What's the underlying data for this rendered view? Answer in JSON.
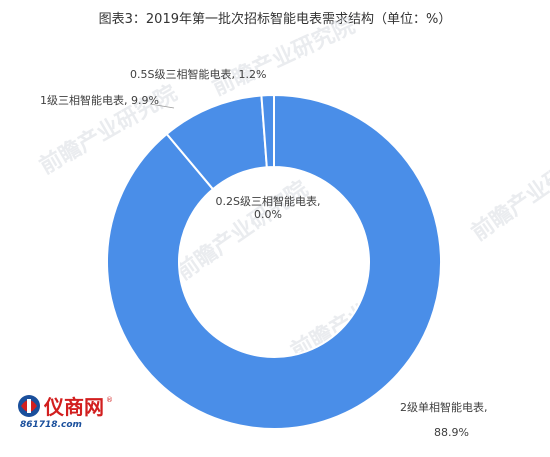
{
  "title": "图表3：2019年第一批次招标智能电表需求结构（单位：%）",
  "chart_data": {
    "type": "pie",
    "donut": true,
    "title": "图表3：2019年第一批次招标智能电表需求结构（单位：%）",
    "slices": [
      {
        "label": "2级单相智能电表",
        "value": 88.9,
        "color": "#4a8ee8"
      },
      {
        "label": "1级三相智能电表",
        "value": 9.9,
        "color": "#4a8ee8"
      },
      {
        "label": "0.5S级三相智能电表",
        "value": 1.2,
        "color": "#4a8ee8"
      },
      {
        "label": "0.2S级三相智能电表",
        "value": 0.0,
        "color": "#4a8ee8"
      }
    ],
    "data_labels": [
      "2级单相智能电表, 88.9%",
      "1级三相智能电表, 9.9%",
      "0.5S级三相智能电表, 1.2%",
      "0.2S级三相智能电表, 0.0%"
    ]
  },
  "labels": {
    "l0a": "2级单相智能电表,",
    "l0b": "88.9%",
    "l1": "1级三相智能电表, 9.9%",
    "l2": "0.5S级三相智能电表, 1.2%",
    "l3a": "0.2S级三相智能电表,",
    "l3b": "0.0%"
  },
  "watermark": "前瞻产业研究院",
  "logo": {
    "name": "仪商网",
    "url": "861718.com",
    "mark": "®"
  }
}
